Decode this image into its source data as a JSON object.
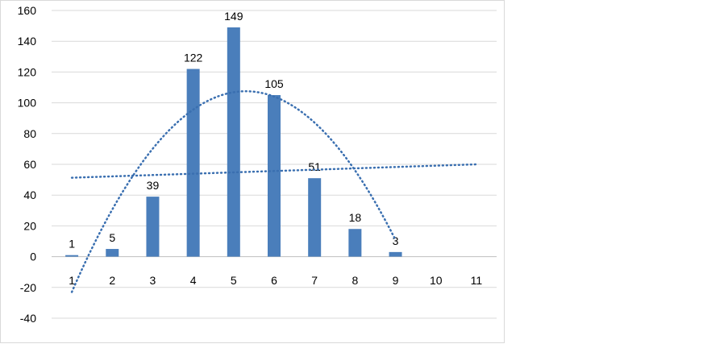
{
  "chart_data": {
    "type": "bar",
    "title": "",
    "xlabel": "",
    "ylabel": "",
    "categories": [
      "1",
      "2",
      "3",
      "4",
      "5",
      "6",
      "7",
      "8",
      "9",
      "10",
      "11"
    ],
    "series": [
      {
        "values": [
          1,
          5,
          39,
          122,
          149,
          105,
          51,
          18,
          3,
          null,
          null
        ],
        "color": "#4a7ebb"
      }
    ],
    "data_labels": [
      "1",
      "5",
      "39",
      "122",
      "149",
      "105",
      "51",
      "18",
      "3"
    ],
    "ylim": [
      -40,
      160
    ],
    "yticks": [
      -40,
      -20,
      0,
      20,
      40,
      60,
      80,
      100,
      120,
      140,
      160
    ],
    "ytick_labels": [
      "-40",
      "-20",
      "0",
      "20",
      "40",
      "60",
      "80",
      "100",
      "120",
      "140",
      "160"
    ],
    "grid": true,
    "legend": "none",
    "trendlines": [
      {
        "kind": "linear",
        "style": "dotted",
        "color": "#3a6fb0",
        "x_range": [
          1,
          11
        ],
        "y_at_start": 51.3,
        "y_at_end": 60.0
      },
      {
        "kind": "polynomial",
        "style": "dotted",
        "color": "#3a6fb0",
        "x_range": [
          1,
          9
        ],
        "vertex_x": 5.3,
        "vertex_y": 107.5,
        "y_at_start": -23.0
      }
    ],
    "colors": {
      "gridline": "#d9d9d9",
      "axis": "#bfbfbf"
    }
  }
}
